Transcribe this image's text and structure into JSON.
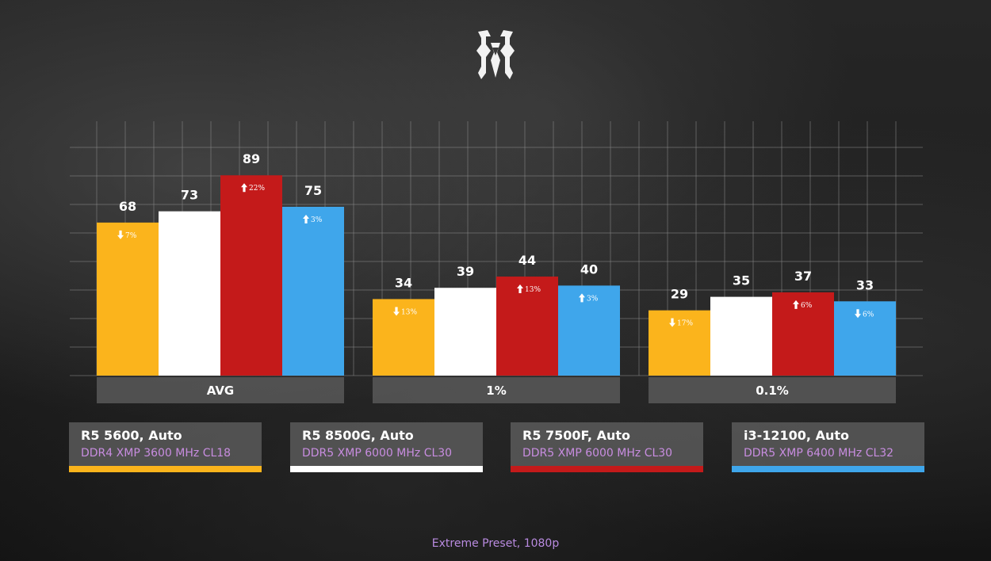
{
  "chart_data": {
    "type": "bar",
    "categories": [
      "AVG",
      "1%",
      "0.1%"
    ],
    "series": [
      {
        "name": "R5 5600, Auto",
        "detail": "DDR4 XMP 3600 MHz CL18",
        "color": "#fbb41c",
        "values": [
          68,
          34,
          29
        ],
        "deltas": [
          {
            "dir": "down",
            "text": "7%"
          },
          {
            "dir": "down",
            "text": "13%"
          },
          {
            "dir": "down",
            "text": "17%"
          }
        ]
      },
      {
        "name": "R5 8500G, Auto",
        "detail": "DDR5 XMP 6000 MHz CL30",
        "color": "#ffffff",
        "values": [
          73,
          39,
          35
        ],
        "deltas": [
          null,
          null,
          null
        ]
      },
      {
        "name": "R5 7500F, Auto",
        "detail": "DDR5 XMP 6000 MHz CL30",
        "color": "#c41a1a",
        "values": [
          89,
          44,
          37
        ],
        "deltas": [
          {
            "dir": "up",
            "text": "22%"
          },
          {
            "dir": "up",
            "text": "13%"
          },
          {
            "dir": "up",
            "text": "6%"
          }
        ]
      },
      {
        "name": "i3-12100, Auto",
        "detail": "DDR5 XMP 6400 MHz CL32",
        "color": "#3fa6eb",
        "values": [
          75,
          40,
          33
        ],
        "deltas": [
          {
            "dir": "up",
            "text": "3%"
          },
          {
            "dir": "up",
            "text": "3%"
          },
          {
            "dir": "down",
            "text": "6%"
          }
        ]
      }
    ],
    "subtitle": "Extreme Preset, 1080p",
    "ylim": [
      0,
      89
    ],
    "grid": true
  },
  "colors": {
    "category_bar": "#555555",
    "gridline": "#8a8a8a"
  },
  "logo_icon": "game-logo-icon"
}
